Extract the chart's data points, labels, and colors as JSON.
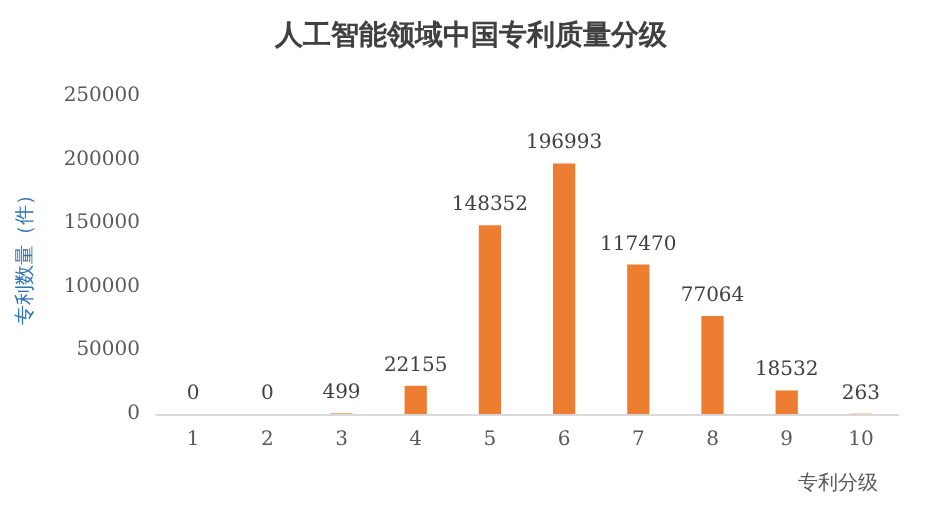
{
  "chart_data": {
    "type": "bar",
    "title": "人工智能领域中国专利质量分级",
    "xlabel": "专利分级",
    "ylabel": "专利数量（件）",
    "categories": [
      "1",
      "2",
      "3",
      "4",
      "5",
      "6",
      "7",
      "8",
      "9",
      "10"
    ],
    "values": [
      0,
      0,
      499,
      22155,
      148352,
      196993,
      117470,
      77064,
      18532,
      263
    ],
    "color": "#ed7d31",
    "ylim": [
      0,
      250000
    ],
    "yticks": [
      0,
      50000,
      100000,
      150000,
      200000,
      250000
    ],
    "grid": false,
    "data_labels": true
  }
}
